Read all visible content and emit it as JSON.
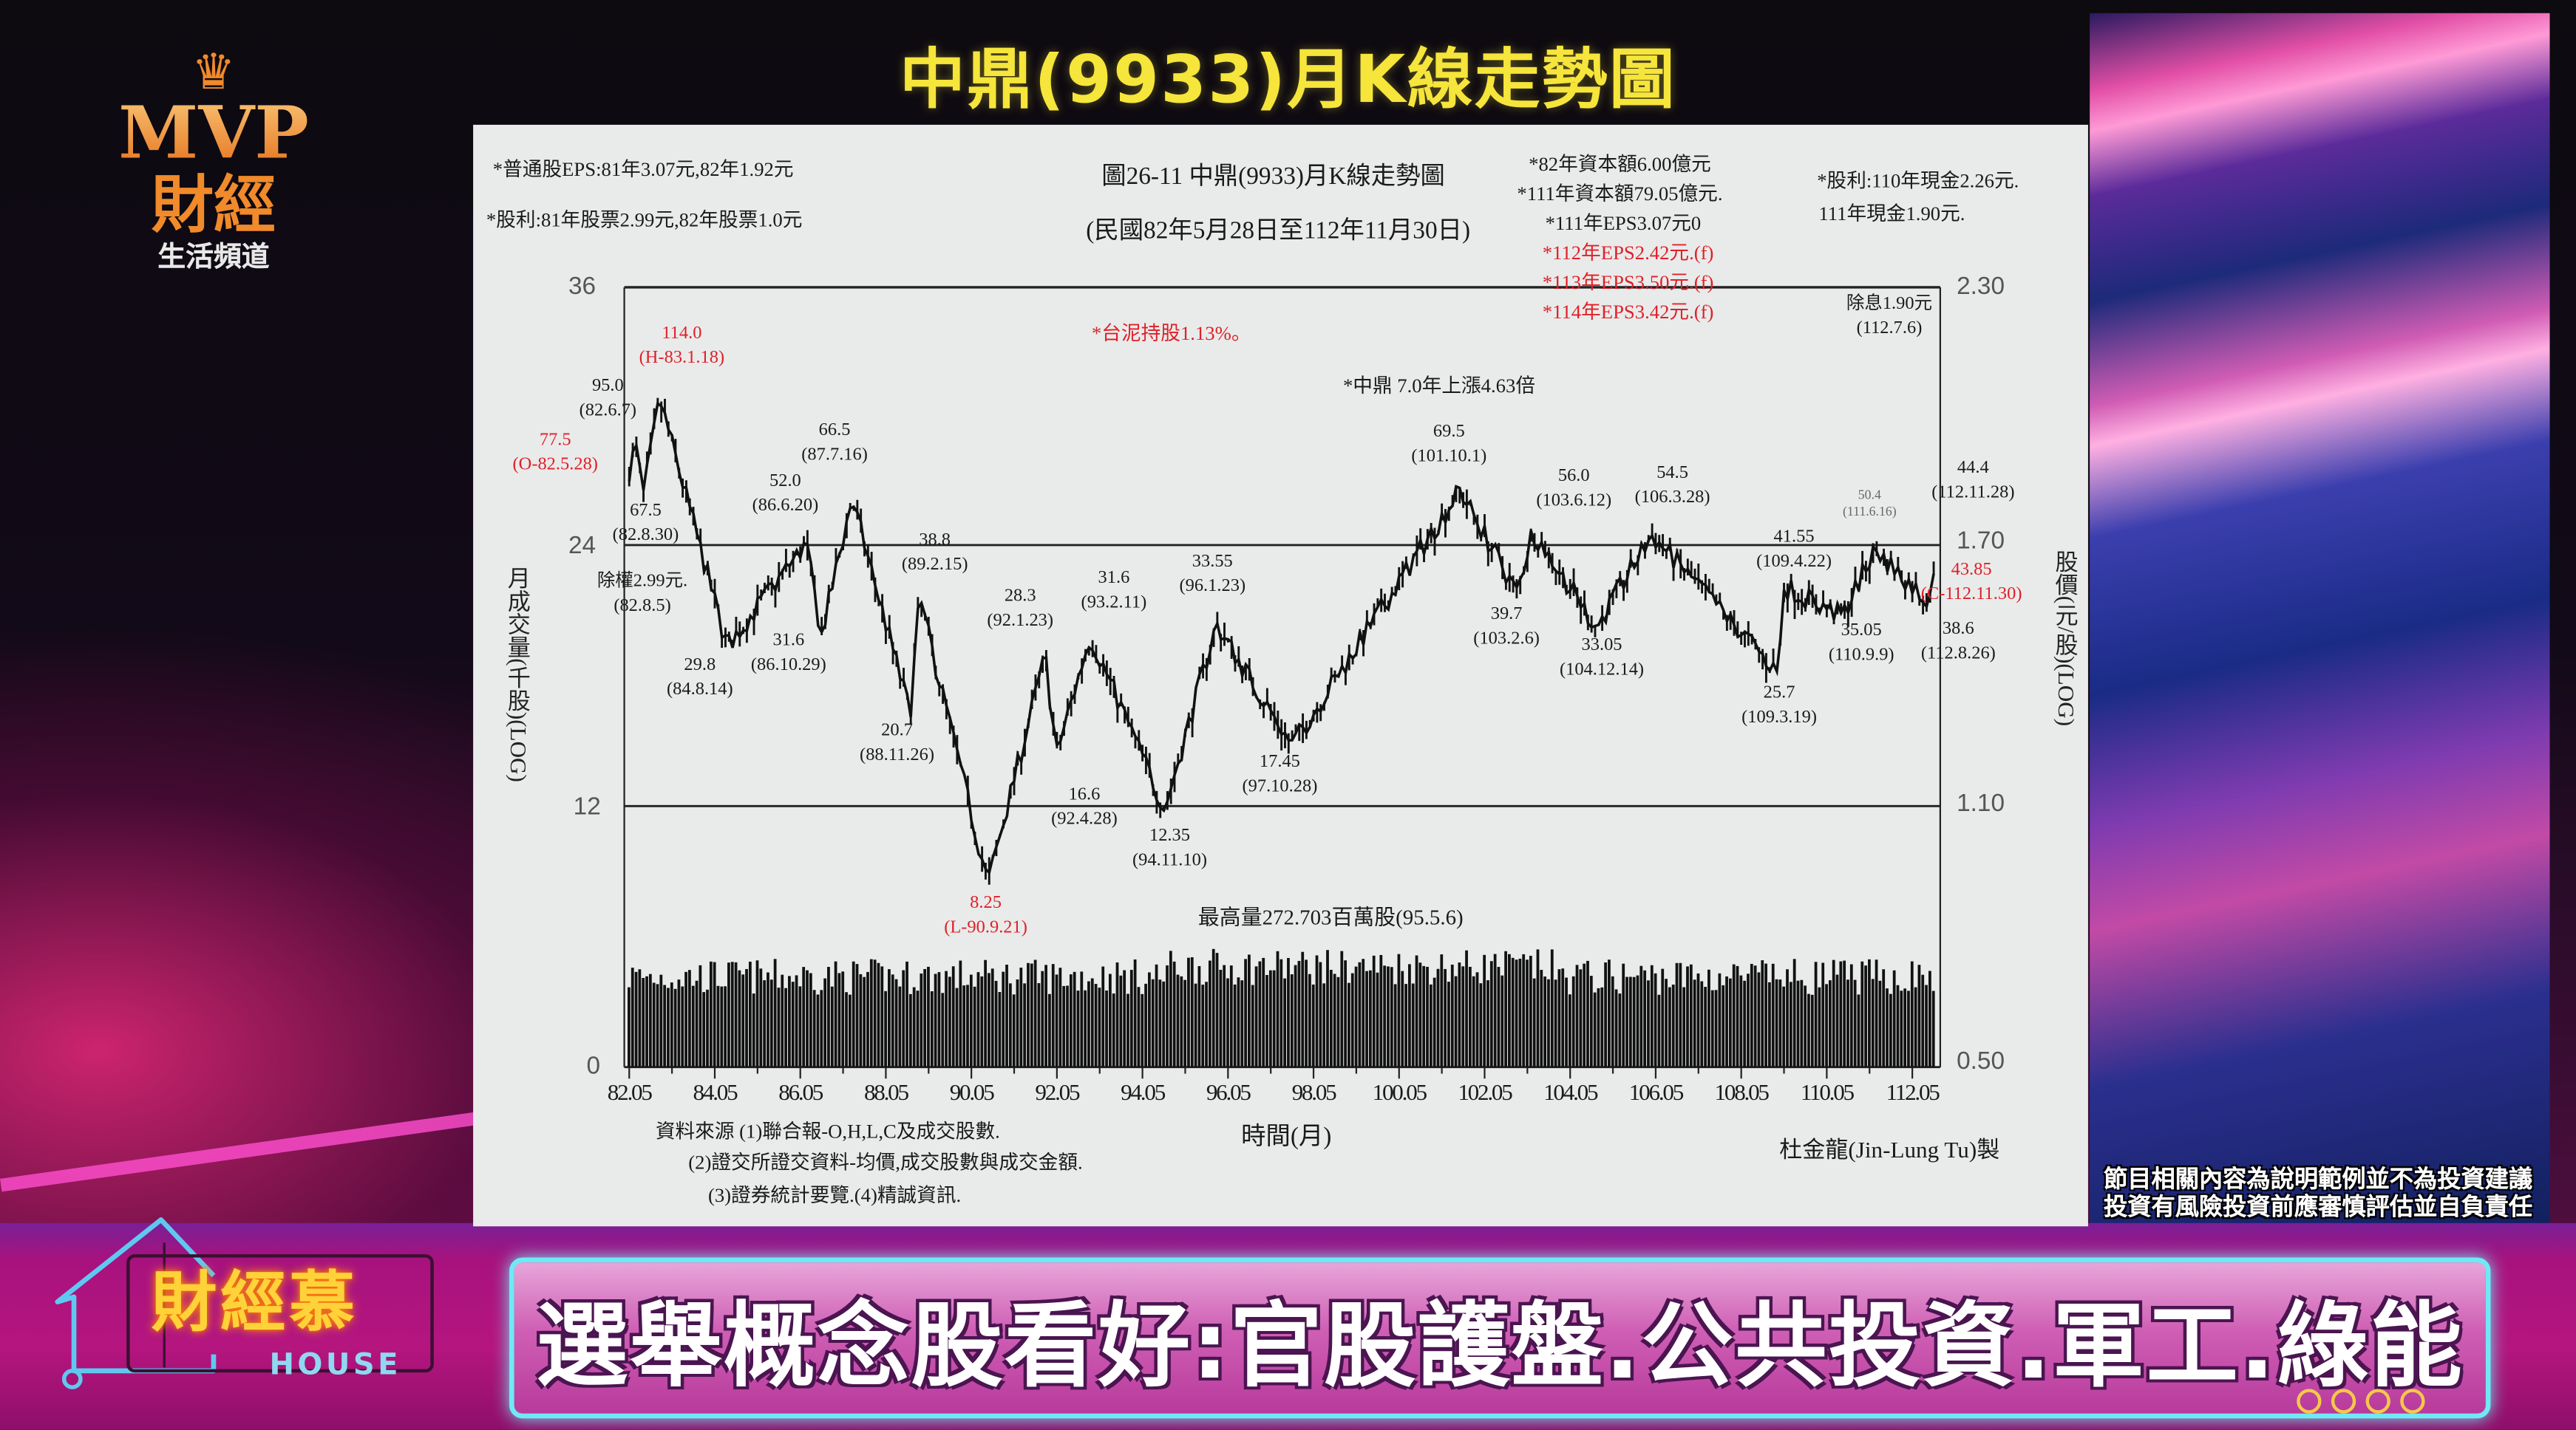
{
  "broadcast": {
    "title": "中鼎(9933)月K線走勢圖",
    "ticker": "選舉概念股看好:官股護盤.公共投資.軍工.綠能",
    "disclaimer": [
      "節目相關內容為說明範例並不為投資建議",
      "投資有風險投資前應審慎評估並自負責任"
    ],
    "logo_channel": {
      "line1": "MVP",
      "line2": "財經",
      "line3": "生活頻道"
    },
    "logo_show": {
      "title": "財經慕",
      "sub": "HOUSE"
    },
    "colors": {
      "title": "#f6e53a",
      "band": "#b5157f",
      "ticker_border": "#6fe9f5",
      "highlight": "#e0202a"
    }
  },
  "chart_data": {
    "type": "line",
    "title": "圖26-11 中鼎(9933)月K線走勢圖",
    "subtitle": "(民國82年5月28日至112年11月30日)",
    "xlabel": "時間(月)",
    "ylabel_left": "月成交量(千股)(LOG)",
    "ylabel_right": "股價(元/股)(LOG)",
    "y_scale": "log",
    "left_ticks": [
      "36",
      "24",
      "12",
      "0"
    ],
    "right_ticks": [
      "2.30",
      "1.70",
      "1.10",
      "0.50"
    ],
    "x_ticks": [
      "82.05",
      "84.05",
      "86.05",
      "88.05",
      "90.05",
      "92.05",
      "94.05",
      "96.05",
      "98.05",
      "100.05",
      "102.05",
      "104.05",
      "106.05",
      "108.05",
      "110.05",
      "112.05"
    ],
    "notes_left": [
      "*普通股EPS:81年3.07元,82年1.92元",
      "*股利:81年股票2.99元,82年股票1.0元"
    ],
    "notes_right": [
      "*82年資本額6.00億元",
      "*111年資本額79.05億元.",
      "*111年EPS3.07元0"
    ],
    "notes_forecast": [
      "*112年EPS2.42元.(f)",
      "*113年EPS3.50元.(f)",
      "*114年EPS3.42元.(f)"
    ],
    "notes_dividend": [
      "*股利:110年現金2.26元.",
      "111年現金1.90元."
    ],
    "note_holding": "*台泥持股1.13%。",
    "note_gain": "*中鼎 7.0年上漲4.63倍",
    "max_volume": "最高量272.703百萬股(95.5.6)",
    "sources": [
      "資料來源 (1)聯合報-O,H,L,C及成交股數.",
      "(2)證交所證交資料-均價,成交股數與成交金額.",
      "(3)證券統計要覽.(4)精誠資訊."
    ],
    "author": "杜金龍(Jin-Lung Tu)製",
    "annotations": [
      {
        "value": "114.0",
        "date": "(H-83.1.18)",
        "kind": "high"
      },
      {
        "value": "95.0",
        "date": "(82.6.7)",
        "kind": "high"
      },
      {
        "value": "77.5",
        "date": "(O-82.5.28)",
        "kind": "open"
      },
      {
        "value": "67.5",
        "date": "(82.8.30)",
        "kind": "low"
      },
      {
        "value": "除權2.99元.",
        "date": "(82.8.5)",
        "kind": "note"
      },
      {
        "value": "29.8",
        "date": "(84.8.14)",
        "kind": "low"
      },
      {
        "value": "52.0",
        "date": "(86.6.20)",
        "kind": "high"
      },
      {
        "value": "31.6",
        "date": "(86.10.29)",
        "kind": "low"
      },
      {
        "value": "66.5",
        "date": "(87.7.16)",
        "kind": "high"
      },
      {
        "value": "38.8",
        "date": "(89.2.15)",
        "kind": "high"
      },
      {
        "value": "20.7",
        "date": "(88.11.26)",
        "kind": "low"
      },
      {
        "value": "8.25",
        "date": "(L-90.9.21)",
        "kind": "low"
      },
      {
        "value": "28.3",
        "date": "(92.1.23)",
        "kind": "high"
      },
      {
        "value": "31.6",
        "date": "(93.2.11)",
        "kind": "high"
      },
      {
        "value": "16.6",
        "date": "(92.4.28)",
        "kind": "low"
      },
      {
        "value": "12.35",
        "date": "(94.11.10)",
        "kind": "low"
      },
      {
        "value": "33.55",
        "date": "(96.1.23)",
        "kind": "high"
      },
      {
        "value": "17.45",
        "date": "(97.10.28)",
        "kind": "low"
      },
      {
        "value": "69.5",
        "date": "(101.10.1)",
        "kind": "high"
      },
      {
        "value": "39.7",
        "date": "(103.2.6)",
        "kind": "low"
      },
      {
        "value": "56.0",
        "date": "(103.6.12)",
        "kind": "high"
      },
      {
        "value": "33.05",
        "date": "(104.12.14)",
        "kind": "low"
      },
      {
        "value": "54.5",
        "date": "(106.3.28)",
        "kind": "high"
      },
      {
        "value": "41.55",
        "date": "(109.4.22)",
        "kind": "high"
      },
      {
        "value": "25.7",
        "date": "(109.3.19)",
        "kind": "low"
      },
      {
        "value": "35.05",
        "date": "(110.9.9)",
        "kind": "low"
      },
      {
        "value": "50.4",
        "date": "(111.6.16)",
        "kind": "high"
      },
      {
        "value": "44.4",
        "date": "(112.11.28)",
        "kind": "high"
      },
      {
        "value": "43.85",
        "date": "(C-112.11.30)",
        "kind": "close"
      },
      {
        "value": "38.6",
        "date": "(112.8.26)",
        "kind": "low"
      },
      {
        "value": "除息1.90元",
        "date": "(112.7.6)",
        "kind": "note"
      }
    ]
  }
}
